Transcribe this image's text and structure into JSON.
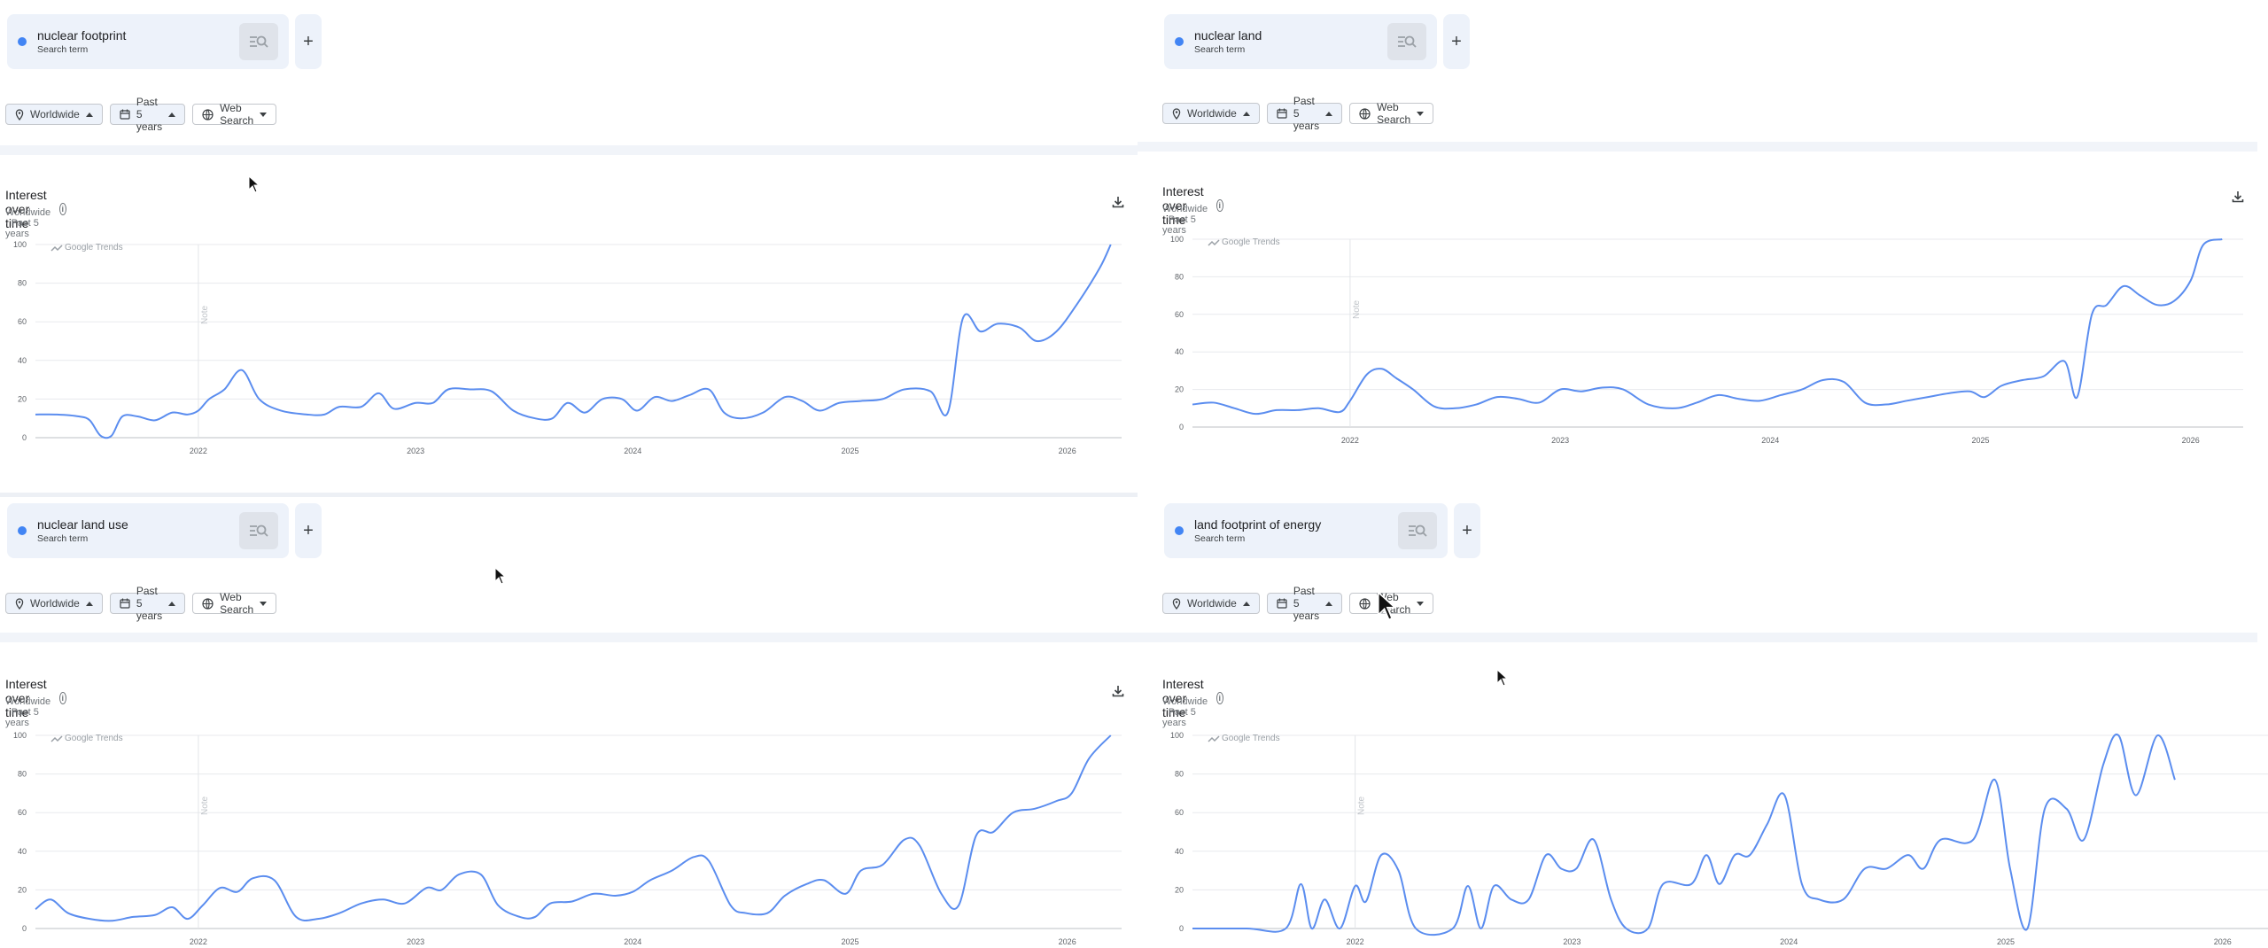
{
  "colors": {
    "line": "#5b8def",
    "accent": "#4285f4",
    "chip_bg": "#edf2fa"
  },
  "panels": [
    {
      "term": "nuclear footprint",
      "term_sub": "Search term",
      "filters": {
        "region": "Worldwide",
        "period": "Past 5 years",
        "property": "Web Search"
      },
      "section_title": "Interest over time",
      "section_sub": "Worldwide · Past 5 years",
      "watermark": "Google Trends",
      "note": "Note",
      "y_ticks": [
        "100",
        "80",
        "60",
        "40",
        "20",
        "0"
      ],
      "x_ticks": [
        "2022",
        "2023",
        "2024",
        "2025",
        "2026"
      ]
    },
    {
      "term": "nuclear land",
      "term_sub": "Search term",
      "filters": {
        "region": "Worldwide",
        "period": "Past 5 years",
        "property": "Web Search"
      },
      "section_title": "Interest over time",
      "section_sub": "Worldwide · Past 5 years",
      "watermark": "Google Trends",
      "note": "Note",
      "y_ticks": [
        "100",
        "80",
        "60",
        "40",
        "20",
        "0"
      ],
      "x_ticks": [
        "2022",
        "2023",
        "2024",
        "2025",
        "2026"
      ]
    },
    {
      "term": "nuclear land use",
      "term_sub": "Search term",
      "filters": {
        "region": "Worldwide",
        "period": "Past 5 years",
        "property": "Web Search"
      },
      "section_title": "Interest over time",
      "section_sub": "Worldwide · Past 5 years",
      "watermark": "Google Trends",
      "note": "Note",
      "y_ticks": [
        "100",
        "80",
        "60",
        "40",
        "20",
        "0"
      ],
      "x_ticks": [
        "2022",
        "2023",
        "2024",
        "2025",
        "2026"
      ]
    },
    {
      "term": "land footprint of energy",
      "term_sub": "Search term",
      "filters": {
        "region": "Worldwide",
        "period": "Past 5 years",
        "property": "Web Search"
      },
      "section_title": "Interest over time",
      "section_sub": "Worldwide · Past 5 years",
      "watermark": "Google Trends",
      "note": "Note",
      "y_ticks": [
        "100",
        "80",
        "60",
        "40",
        "20",
        "0"
      ],
      "x_ticks": [
        "2022",
        "2023",
        "2024",
        "2025",
        "2026"
      ]
    }
  ],
  "chart_data": [
    {
      "type": "line",
      "ylim": [
        0,
        100
      ],
      "xlim": [
        2021.25,
        2026.25
      ],
      "series": [
        {
          "name": "nuclear footprint",
          "points": [
            [
              2021.25,
              12
            ],
            [
              2021.35,
              12
            ],
            [
              2021.45,
              11
            ],
            [
              2021.5,
              9
            ],
            [
              2021.55,
              1
            ],
            [
              2021.6,
              1
            ],
            [
              2021.65,
              11
            ],
            [
              2021.72,
              11
            ],
            [
              2021.8,
              9
            ],
            [
              2021.88,
              13
            ],
            [
              2021.95,
              12
            ],
            [
              2022.0,
              14
            ],
            [
              2022.05,
              20
            ],
            [
              2022.12,
              25
            ],
            [
              2022.2,
              35
            ],
            [
              2022.28,
              20
            ],
            [
              2022.38,
              14
            ],
            [
              2022.5,
              12
            ],
            [
              2022.58,
              12
            ],
            [
              2022.65,
              16
            ],
            [
              2022.75,
              16
            ],
            [
              2022.83,
              23
            ],
            [
              2022.9,
              15
            ],
            [
              2023.0,
              18
            ],
            [
              2023.08,
              18
            ],
            [
              2023.15,
              25
            ],
            [
              2023.25,
              25
            ],
            [
              2023.35,
              24
            ],
            [
              2023.45,
              14
            ],
            [
              2023.55,
              10
            ],
            [
              2023.63,
              10
            ],
            [
              2023.7,
              18
            ],
            [
              2023.78,
              13
            ],
            [
              2023.86,
              20
            ],
            [
              2023.95,
              20
            ],
            [
              2024.02,
              14
            ],
            [
              2024.1,
              21
            ],
            [
              2024.18,
              19
            ],
            [
              2024.26,
              22
            ],
            [
              2024.35,
              25
            ],
            [
              2024.42,
              13
            ],
            [
              2024.5,
              10
            ],
            [
              2024.6,
              13
            ],
            [
              2024.7,
              21
            ],
            [
              2024.78,
              19
            ],
            [
              2024.86,
              14
            ],
            [
              2024.95,
              18
            ],
            [
              2025.05,
              19
            ],
            [
              2025.15,
              20
            ],
            [
              2025.25,
              25
            ],
            [
              2025.37,
              24
            ],
            [
              2025.45,
              13
            ],
            [
              2025.52,
              62
            ],
            [
              2025.6,
              55
            ],
            [
              2025.68,
              59
            ],
            [
              2025.78,
              57
            ],
            [
              2025.86,
              50
            ],
            [
              2025.95,
              55
            ],
            [
              2026.05,
              70
            ],
            [
              2026.15,
              88
            ],
            [
              2026.2,
              100
            ]
          ]
        }
      ]
    },
    {
      "type": "line",
      "ylim": [
        0,
        100
      ],
      "xlim": [
        2021.25,
        2026.25
      ],
      "series": [
        {
          "name": "nuclear land",
          "points": [
            [
              2021.25,
              12
            ],
            [
              2021.35,
              13
            ],
            [
              2021.45,
              10
            ],
            [
              2021.55,
              7
            ],
            [
              2021.65,
              9
            ],
            [
              2021.75,
              9
            ],
            [
              2021.85,
              10
            ],
            [
              2021.95,
              8
            ],
            [
              2022.0,
              14
            ],
            [
              2022.08,
              28
            ],
            [
              2022.15,
              31
            ],
            [
              2022.22,
              26
            ],
            [
              2022.3,
              20
            ],
            [
              2022.4,
              11
            ],
            [
              2022.5,
              10
            ],
            [
              2022.6,
              12
            ],
            [
              2022.7,
              16
            ],
            [
              2022.8,
              15
            ],
            [
              2022.9,
              13
            ],
            [
              2023.0,
              20
            ],
            [
              2023.1,
              19
            ],
            [
              2023.2,
              21
            ],
            [
              2023.3,
              20
            ],
            [
              2023.42,
              12
            ],
            [
              2023.55,
              10
            ],
            [
              2023.65,
              13
            ],
            [
              2023.75,
              17
            ],
            [
              2023.85,
              15
            ],
            [
              2023.95,
              14
            ],
            [
              2024.05,
              17
            ],
            [
              2024.15,
              20
            ],
            [
              2024.25,
              25
            ],
            [
              2024.35,
              24
            ],
            [
              2024.45,
              13
            ],
            [
              2024.55,
              12
            ],
            [
              2024.65,
              14
            ],
            [
              2024.75,
              16
            ],
            [
              2024.85,
              18
            ],
            [
              2024.95,
              19
            ],
            [
              2025.02,
              16
            ],
            [
              2025.1,
              22
            ],
            [
              2025.2,
              25
            ],
            [
              2025.3,
              27
            ],
            [
              2025.4,
              35
            ],
            [
              2025.46,
              16
            ],
            [
              2025.53,
              60
            ],
            [
              2025.6,
              65
            ],
            [
              2025.68,
              75
            ],
            [
              2025.76,
              70
            ],
            [
              2025.84,
              65
            ],
            [
              2025.92,
              67
            ],
            [
              2026.0,
              78
            ],
            [
              2026.06,
              97
            ],
            [
              2026.15,
              100
            ]
          ]
        }
      ]
    },
    {
      "type": "line",
      "ylim": [
        0,
        100
      ],
      "xlim": [
        2021.25,
        2026.25
      ],
      "series": [
        {
          "name": "nuclear land use",
          "points": [
            [
              2021.25,
              10
            ],
            [
              2021.32,
              15
            ],
            [
              2021.4,
              8
            ],
            [
              2021.5,
              5
            ],
            [
              2021.6,
              4
            ],
            [
              2021.7,
              6
            ],
            [
              2021.8,
              7
            ],
            [
              2021.88,
              11
            ],
            [
              2021.95,
              5
            ],
            [
              2022.02,
              12
            ],
            [
              2022.1,
              21
            ],
            [
              2022.18,
              19
            ],
            [
              2022.25,
              26
            ],
            [
              2022.35,
              25
            ],
            [
              2022.45,
              6
            ],
            [
              2022.55,
              5
            ],
            [
              2022.65,
              8
            ],
            [
              2022.75,
              13
            ],
            [
              2022.85,
              15
            ],
            [
              2022.95,
              13
            ],
            [
              2023.05,
              21
            ],
            [
              2023.12,
              20
            ],
            [
              2023.2,
              28
            ],
            [
              2023.3,
              28
            ],
            [
              2023.38,
              12
            ],
            [
              2023.48,
              6
            ],
            [
              2023.55,
              6
            ],
            [
              2023.62,
              13
            ],
            [
              2023.72,
              14
            ],
            [
              2023.82,
              18
            ],
            [
              2023.92,
              17
            ],
            [
              2024.0,
              19
            ],
            [
              2024.08,
              25
            ],
            [
              2024.18,
              30
            ],
            [
              2024.28,
              37
            ],
            [
              2024.35,
              35
            ],
            [
              2024.45,
              12
            ],
            [
              2024.52,
              8
            ],
            [
              2024.62,
              8
            ],
            [
              2024.7,
              17
            ],
            [
              2024.8,
              23
            ],
            [
              2024.88,
              25
            ],
            [
              2024.98,
              18
            ],
            [
              2025.05,
              30
            ],
            [
              2025.15,
              33
            ],
            [
              2025.25,
              46
            ],
            [
              2025.32,
              43
            ],
            [
              2025.42,
              18
            ],
            [
              2025.5,
              12
            ],
            [
              2025.58,
              48
            ],
            [
              2025.66,
              50
            ],
            [
              2025.75,
              60
            ],
            [
              2025.85,
              62
            ],
            [
              2025.95,
              66
            ],
            [
              2026.02,
              70
            ],
            [
              2026.1,
              88
            ],
            [
              2026.2,
              100
            ]
          ]
        }
      ]
    },
    {
      "type": "line",
      "ylim": [
        0,
        100
      ],
      "xlim": [
        2021.25,
        2026.25
      ],
      "series": [
        {
          "name": "land footprint of energy",
          "points": [
            [
              2021.25,
              0
            ],
            [
              2021.5,
              0
            ],
            [
              2021.68,
              0
            ],
            [
              2021.75,
              23
            ],
            [
              2021.8,
              0
            ],
            [
              2021.86,
              15
            ],
            [
              2021.93,
              0
            ],
            [
              2022.0,
              22
            ],
            [
              2022.05,
              14
            ],
            [
              2022.12,
              38
            ],
            [
              2022.2,
              30
            ],
            [
              2022.28,
              0
            ],
            [
              2022.45,
              0
            ],
            [
              2022.52,
              22
            ],
            [
              2022.58,
              0
            ],
            [
              2022.64,
              22
            ],
            [
              2022.72,
              15
            ],
            [
              2022.8,
              15
            ],
            [
              2022.88,
              38
            ],
            [
              2022.95,
              31
            ],
            [
              2023.02,
              31
            ],
            [
              2023.1,
              46
            ],
            [
              2023.18,
              15
            ],
            [
              2023.25,
              0
            ],
            [
              2023.35,
              0
            ],
            [
              2023.42,
              23
            ],
            [
              2023.55,
              23
            ],
            [
              2023.62,
              38
            ],
            [
              2023.68,
              23
            ],
            [
              2023.75,
              38
            ],
            [
              2023.82,
              38
            ],
            [
              2023.9,
              54
            ],
            [
              2023.98,
              69
            ],
            [
              2024.06,
              23
            ],
            [
              2024.14,
              15
            ],
            [
              2024.25,
              15
            ],
            [
              2024.35,
              31
            ],
            [
              2024.45,
              31
            ],
            [
              2024.55,
              38
            ],
            [
              2024.62,
              31
            ],
            [
              2024.7,
              46
            ],
            [
              2024.85,
              46
            ],
            [
              2024.95,
              77
            ],
            [
              2025.02,
              31
            ],
            [
              2025.1,
              0
            ],
            [
              2025.18,
              62
            ],
            [
              2025.28,
              62
            ],
            [
              2025.36,
              46
            ],
            [
              2025.45,
              85
            ],
            [
              2025.52,
              100
            ],
            [
              2025.6,
              69
            ],
            [
              2025.7,
              100
            ],
            [
              2025.78,
              77
            ]
          ]
        }
      ]
    }
  ]
}
